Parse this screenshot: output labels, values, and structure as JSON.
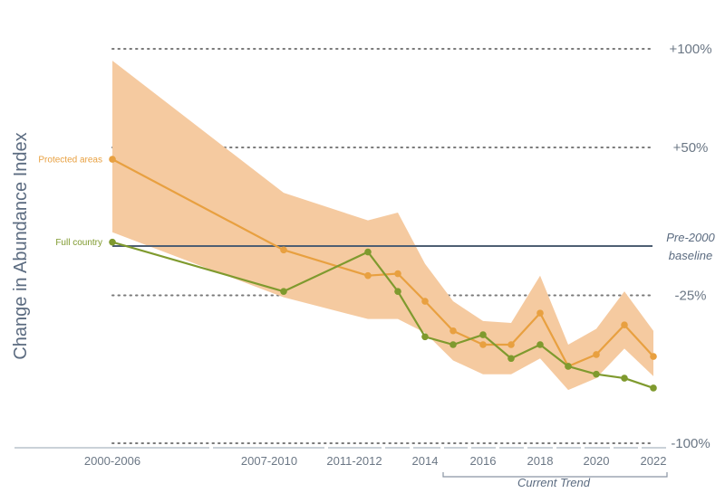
{
  "chart_data": {
    "type": "line",
    "ylabel": "Change in Abundance Index",
    "x_tick_labels": [
      "2000-2006",
      "2007-2010",
      "2011-2012",
      "2014",
      "2016",
      "2018",
      "2020",
      "2022"
    ],
    "reference_lines": [
      {
        "label": "+100%",
        "value": 100
      },
      {
        "label": "+50%",
        "value": 50
      },
      {
        "label": "-25%",
        "value": -25
      },
      {
        "label": "-100%",
        "value": -100
      }
    ],
    "baseline": {
      "label_line1": "Pre-2000",
      "label_line2": "baseline",
      "value": 0
    },
    "current_trend_label": "Current Trend",
    "colors": {
      "protected": "#e8a040",
      "band": "#f5caa0",
      "full": "#7f9a2e",
      "baseline": "#4e5f73",
      "grid": "#7a7a7a",
      "text": "#6b7785"
    },
    "series": [
      {
        "name": "Protected areas",
        "x": [
          2003,
          2009,
          2012,
          2013,
          2014,
          2015,
          2016,
          2017,
          2018,
          2019,
          2020,
          2021,
          2022
        ],
        "values": [
          44,
          -2,
          -15,
          -14,
          -28,
          -43,
          -50,
          -50,
          -34,
          -61,
          -55,
          -40,
          -56
        ],
        "lower": [
          7,
          -26,
          -37,
          -37,
          -44,
          -58,
          -65,
          -65,
          -57,
          -73,
          -67,
          -52,
          -66
        ],
        "upper": [
          94,
          27,
          13,
          17,
          -9,
          -28,
          -38,
          -39,
          -15,
          -50,
          -42,
          -23,
          -43
        ]
      },
      {
        "name": "Full country",
        "x": [
          2003,
          2009,
          2012,
          2013,
          2014,
          2015,
          2016,
          2017,
          2018,
          2019,
          2020,
          2021,
          2022
        ],
        "values": [
          2,
          -23,
          -3,
          -23,
          -46,
          -50,
          -45,
          -57,
          -50,
          -61,
          -65,
          -67,
          -72
        ]
      }
    ]
  }
}
